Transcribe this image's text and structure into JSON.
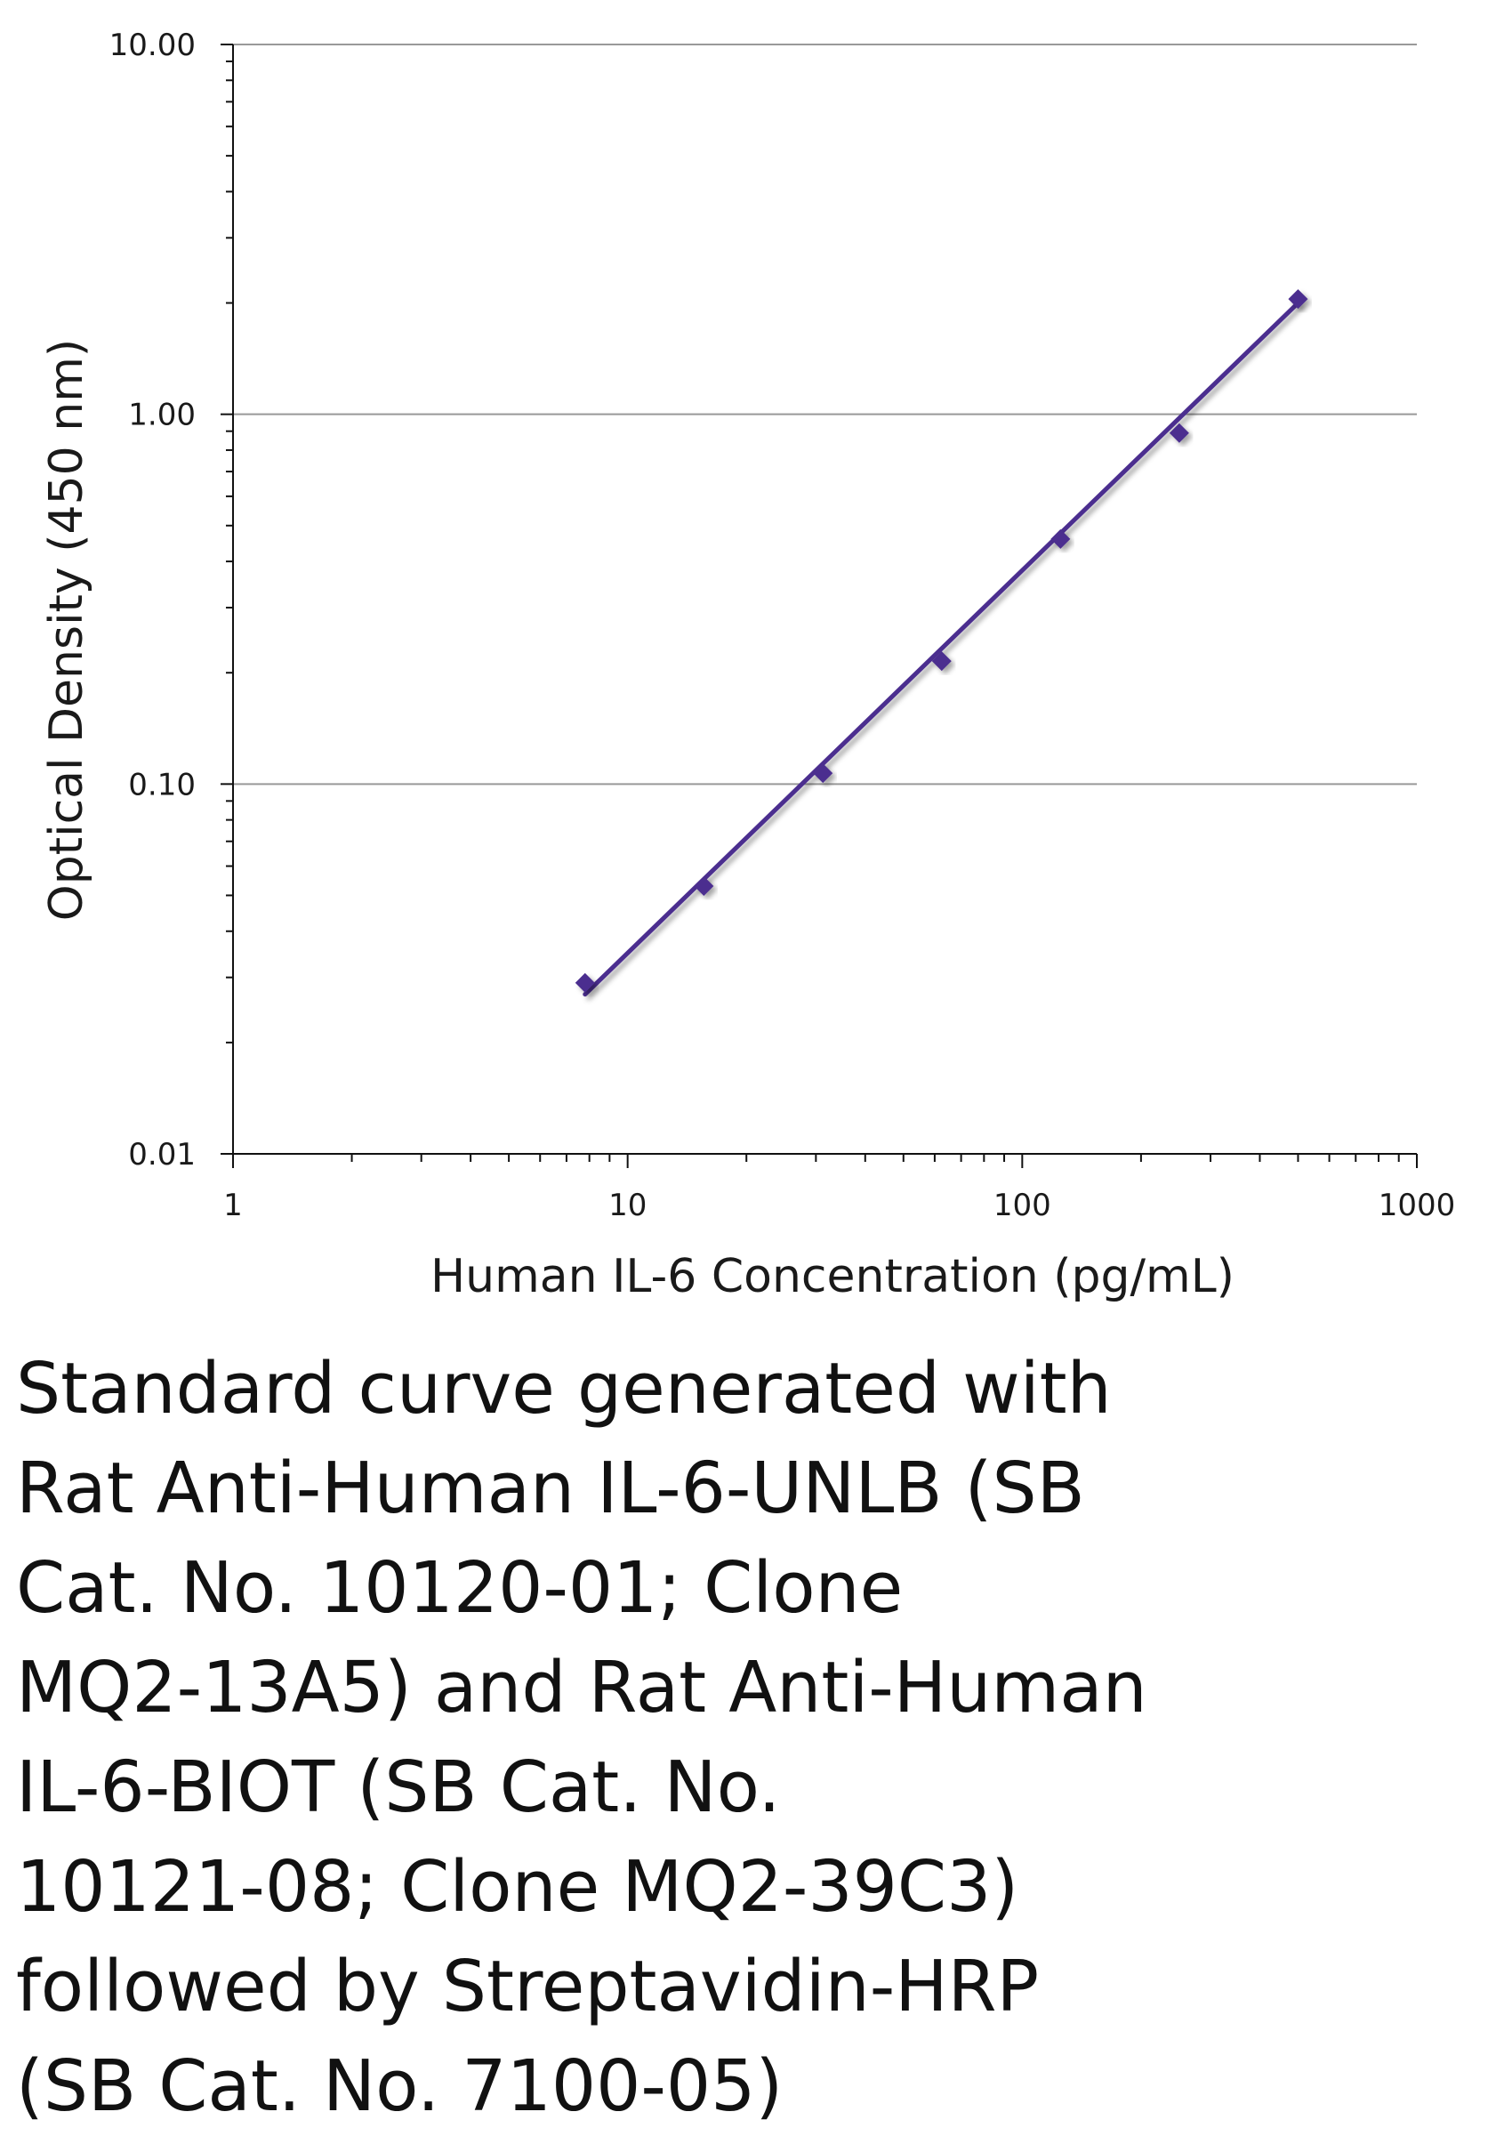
{
  "chart_data": {
    "type": "line",
    "title": "",
    "xlabel": "Human IL-6 Concentration (pg/mL)",
    "ylabel": "Optical Density (450 nm)",
    "xscale": "log",
    "yscale": "log",
    "xlim": [
      1,
      1000
    ],
    "ylim": [
      0.01,
      10
    ],
    "x_tick_labels": [
      "1",
      "10",
      "100",
      "1000"
    ],
    "y_tick_labels": [
      "0.01",
      "0.10",
      "1.00",
      "10.00"
    ],
    "grid": "horizontal major lines",
    "legend": "none",
    "series": [
      {
        "name": "Standard curve",
        "marker": "diamond",
        "x": [
          7.8,
          15.6,
          31.25,
          62.5,
          125,
          250,
          500
        ],
        "values": [
          0.029,
          0.053,
          0.107,
          0.215,
          0.46,
          0.89,
          2.05
        ]
      }
    ],
    "fit": {
      "type": "power",
      "x": [
        7.8,
        500
      ],
      "values": [
        0.027,
        2.0
      ]
    },
    "colors": {
      "series": "#4b2d8f",
      "grid": "#999999",
      "axis": "#111111"
    }
  },
  "caption": {
    "lines": [
      "Standard curve generated with",
      "Rat Anti-Human IL-6-UNLB (SB",
      "Cat. No. 10120-01; Clone",
      "MQ2-13A5) and Rat Anti-Human",
      "IL-6-BIOT (SB Cat. No.",
      "10121-08; Clone MQ2-39C3)",
      "followed by Streptavidin-HRP",
      "(SB Cat. No. 7100-05)"
    ]
  }
}
